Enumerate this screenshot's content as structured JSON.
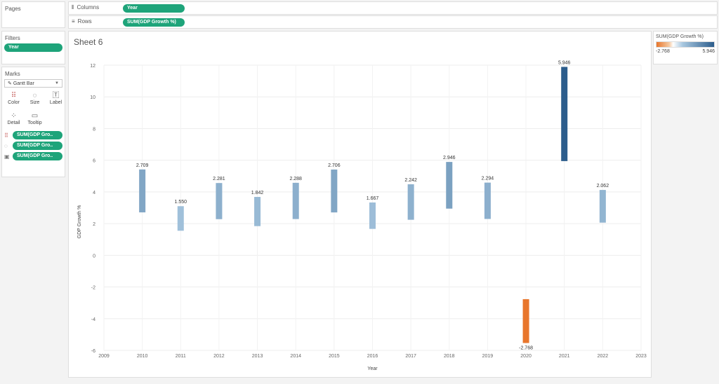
{
  "left": {
    "pages_title": "Pages",
    "filters_title": "Filters",
    "filter_pill": "Year",
    "marks_title": "Marks",
    "mark_type": "Gantt Bar",
    "buttons": [
      "Color",
      "Size",
      "Label",
      "Detail",
      "Tooltip"
    ],
    "mark_pills": [
      "SUM(GDP Gro..",
      "SUM(GDP Gro..",
      "SUM(GDP Gro.."
    ]
  },
  "shelves": {
    "columns_label": "Columns",
    "columns_pill": "Year",
    "rows_label": "Rows",
    "rows_pill": "SUM(GDP Growth %)"
  },
  "sheet": {
    "title": "Sheet 6"
  },
  "legend": {
    "title": "SUM(GDP Growth %)",
    "min": "-2.768",
    "max": "5.946"
  },
  "colors": {
    "accent_pill": "#1ea47a",
    "negative": "#e8762c",
    "positive_dark": "#2c5d8c",
    "positive_light": "#a9c8e0"
  },
  "icons": {
    "columns": "columns-icon",
    "rows": "rows-icon",
    "dropdown": "chevron-down-icon"
  },
  "chart_data": {
    "type": "gantt",
    "xlabel": "Year",
    "ylabel": "GDP Growth %",
    "xlim": [
      2009,
      2023
    ],
    "ylim": [
      -6,
      12
    ],
    "x_ticks": [
      2009,
      2010,
      2011,
      2012,
      2013,
      2014,
      2015,
      2016,
      2017,
      2018,
      2019,
      2020,
      2021,
      2022,
      2023
    ],
    "y_ticks": [
      12,
      10,
      8,
      6,
      4,
      2,
      0,
      -2,
      -4,
      -6
    ],
    "color_range": [
      -2.768,
      5.946
    ],
    "bars": [
      {
        "x": 2010,
        "value": 2.709,
        "label": "2.709"
      },
      {
        "x": 2011,
        "value": 1.55,
        "label": "1.550"
      },
      {
        "x": 2012,
        "value": 2.281,
        "label": "2.281"
      },
      {
        "x": 2013,
        "value": 1.842,
        "label": "1.842"
      },
      {
        "x": 2014,
        "value": 2.288,
        "label": "2.288"
      },
      {
        "x": 2015,
        "value": 2.706,
        "label": "2.706"
      },
      {
        "x": 2016,
        "value": 1.667,
        "label": "1.667"
      },
      {
        "x": 2017,
        "value": 2.242,
        "label": "2.242"
      },
      {
        "x": 2018,
        "value": 2.946,
        "label": "2.946"
      },
      {
        "x": 2019,
        "value": 2.294,
        "label": "2.294"
      },
      {
        "x": 2020,
        "value": -2.768,
        "label": "-2.768"
      },
      {
        "x": 2021,
        "value": 5.946,
        "label": "5.946"
      },
      {
        "x": 2022,
        "value": 2.062,
        "label": "2.062"
      }
    ]
  }
}
